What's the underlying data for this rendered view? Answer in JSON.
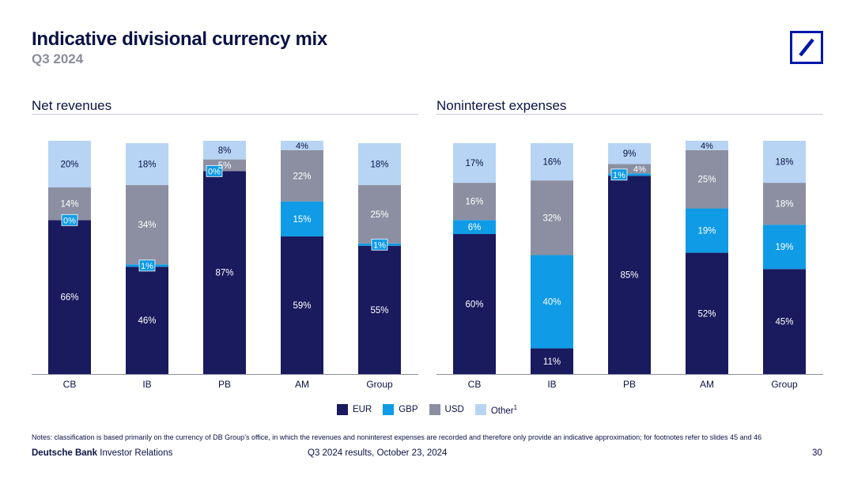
{
  "header": {
    "title": "Indicative divisional currency mix",
    "subtitle": "Q3 2024"
  },
  "colors": {
    "EUR": "#1a1a5e",
    "GBP": "#0f9be6",
    "USD": "#8c8fa1",
    "Other": "#b8d4f5"
  },
  "chart_data": [
    {
      "type": "bar",
      "stacked": true,
      "title": "Net revenues",
      "categories": [
        "CB",
        "IB",
        "PB",
        "AM",
        "Group"
      ],
      "ylim": [
        0,
        100
      ],
      "series": [
        {
          "name": "EUR",
          "values": [
            66,
            46,
            87,
            59,
            55
          ],
          "labels": [
            "66%",
            "46%",
            "87%",
            "59%",
            "55%"
          ]
        },
        {
          "name": "GBP",
          "values": [
            0,
            1,
            0,
            15,
            1
          ],
          "labels": [
            "0%",
            "1%",
            "0%",
            "15%",
            "1%"
          ]
        },
        {
          "name": "USD",
          "values": [
            14,
            34,
            5,
            22,
            25
          ],
          "labels": [
            "14%",
            "34%",
            "5%",
            "22%",
            "25%"
          ]
        },
        {
          "name": "Other",
          "values": [
            20,
            18,
            8,
            4,
            18
          ],
          "labels": [
            "20%",
            "18%",
            "8%",
            "4%",
            "18%"
          ]
        }
      ]
    },
    {
      "type": "bar",
      "stacked": true,
      "title": "Noninterest expenses",
      "categories": [
        "CB",
        "IB",
        "PB",
        "AM",
        "Group"
      ],
      "ylim": [
        0,
        100
      ],
      "series": [
        {
          "name": "EUR",
          "values": [
            60,
            11,
            85,
            52,
            45
          ],
          "labels": [
            "60%",
            "11%",
            "85%",
            "52%",
            "45%"
          ]
        },
        {
          "name": "GBP",
          "values": [
            6,
            40,
            1,
            19,
            19
          ],
          "labels": [
            "6%",
            "40%",
            "1%",
            "19%",
            "19%"
          ]
        },
        {
          "name": "USD",
          "values": [
            16,
            32,
            4,
            25,
            18
          ],
          "labels": [
            "16%",
            "32%",
            "4%",
            "25%",
            "18%"
          ]
        },
        {
          "name": "Other",
          "values": [
            17,
            16,
            9,
            4,
            18
          ],
          "labels": [
            "17%",
            "16%",
            "9%",
            "4%",
            "18%"
          ]
        }
      ]
    }
  ],
  "legend": {
    "items": [
      {
        "key": "EUR",
        "label": "EUR"
      },
      {
        "key": "GBP",
        "label": "GBP"
      },
      {
        "key": "USD",
        "label": "USD"
      },
      {
        "key": "Other",
        "label": "Other",
        "sup": "1"
      }
    ]
  },
  "footer": {
    "notes": "Notes: classification is based primarily on the currency of DB Group’s office, in which the revenues and noninterest expenses are recorded and therefore only provide an indicative approximation; for footnotes refer to slides 45 and 46",
    "brand_bold": "Deutsche Bank",
    "brand_rest": "Investor Relations",
    "center": "Q3 2024 results, October 23, 2024",
    "page": "30"
  }
}
